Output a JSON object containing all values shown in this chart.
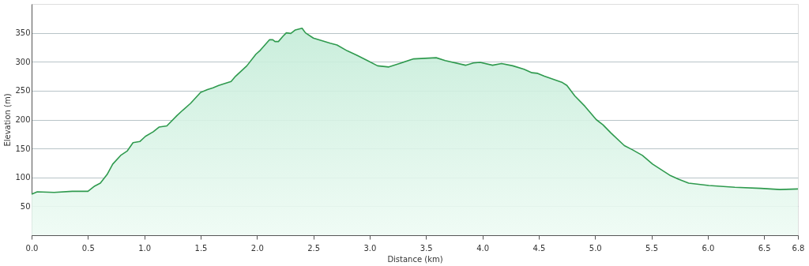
{
  "chart_data": {
    "type": "area",
    "xlabel": "Distance  (km)",
    "ylabel": "Elevation (m)",
    "x": [
      0,
      0.05,
      0.2,
      0.36,
      0.5,
      0.56,
      0.61,
      0.67,
      0.72,
      0.79,
      0.85,
      0.9,
      0.96,
      1.01,
      1.08,
      1.13,
      1.2,
      1.29,
      1.34,
      1.41,
      1.5,
      1.56,
      1.61,
      1.66,
      1.77,
      1.81,
      1.91,
      1.99,
      2.03,
      2.11,
      2.14,
      2.16,
      2.19,
      2.23,
      2.26,
      2.3,
      2.34,
      2.4,
      2.43,
      2.5,
      2.65,
      2.71,
      2.8,
      2.89,
      2.98,
      3.07,
      3.17,
      3.28,
      3.39,
      3.59,
      3.67,
      3.85,
      3.92,
      3.98,
      4.09,
      4.17,
      4.27,
      4.37,
      4.44,
      4.49,
      4.55,
      4.71,
      4.75,
      4.82,
      4.91,
      5.01,
      5.07,
      5.14,
      5.26,
      5.33,
      5.42,
      5.51,
      5.67,
      5.74,
      5.83,
      6.01,
      6.24,
      6.47,
      6.64,
      6.8
    ],
    "series": [
      {
        "color": "#2f9a4e",
        "values": [
          71,
          75,
          74,
          76,
          76,
          85,
          90,
          105,
          123,
          138,
          146,
          160,
          162,
          171,
          179,
          187,
          189,
          207,
          216,
          228,
          247,
          252,
          255,
          259,
          266,
          275,
          293,
          313,
          320,
          338,
          338,
          335,
          335,
          344,
          350,
          349,
          355,
          358,
          350,
          341,
          332,
          329,
          319,
          311,
          302,
          293,
          291,
          298,
          305,
          307,
          302,
          294,
          298,
          299,
          294,
          297,
          293,
          287,
          281,
          280,
          275,
          264,
          259,
          241,
          223,
          200,
          191,
          177,
          155,
          148,
          138,
          123,
          103,
          97,
          90,
          86,
          83,
          81,
          79,
          80
        ]
      }
    ],
    "xlim": [
      0,
      6.8
    ],
    "xticks": [
      {
        "value": 0,
        "label": "0.0"
      },
      {
        "value": 0.5,
        "label": "0.5"
      },
      {
        "value": 1,
        "label": "1.0"
      },
      {
        "value": 1.5,
        "label": "1.5"
      },
      {
        "value": 2,
        "label": "2.0"
      },
      {
        "value": 2.5,
        "label": "2.5"
      },
      {
        "value": 3,
        "label": "3.0"
      },
      {
        "value": 3.5,
        "label": "3.5"
      },
      {
        "value": 4,
        "label": "4.0"
      },
      {
        "value": 4.5,
        "label": "4.5"
      },
      {
        "value": 5,
        "label": "5.0"
      },
      {
        "value": 5.5,
        "label": "5.5"
      },
      {
        "value": 6,
        "label": "6.0"
      },
      {
        "value": 6.5,
        "label": "6.5"
      },
      {
        "value": 6.8,
        "label": "6.8"
      }
    ],
    "ylim": [
      0,
      400
    ],
    "yticks": [
      50,
      100,
      150,
      200,
      250,
      300,
      350
    ],
    "grid": "y"
  }
}
